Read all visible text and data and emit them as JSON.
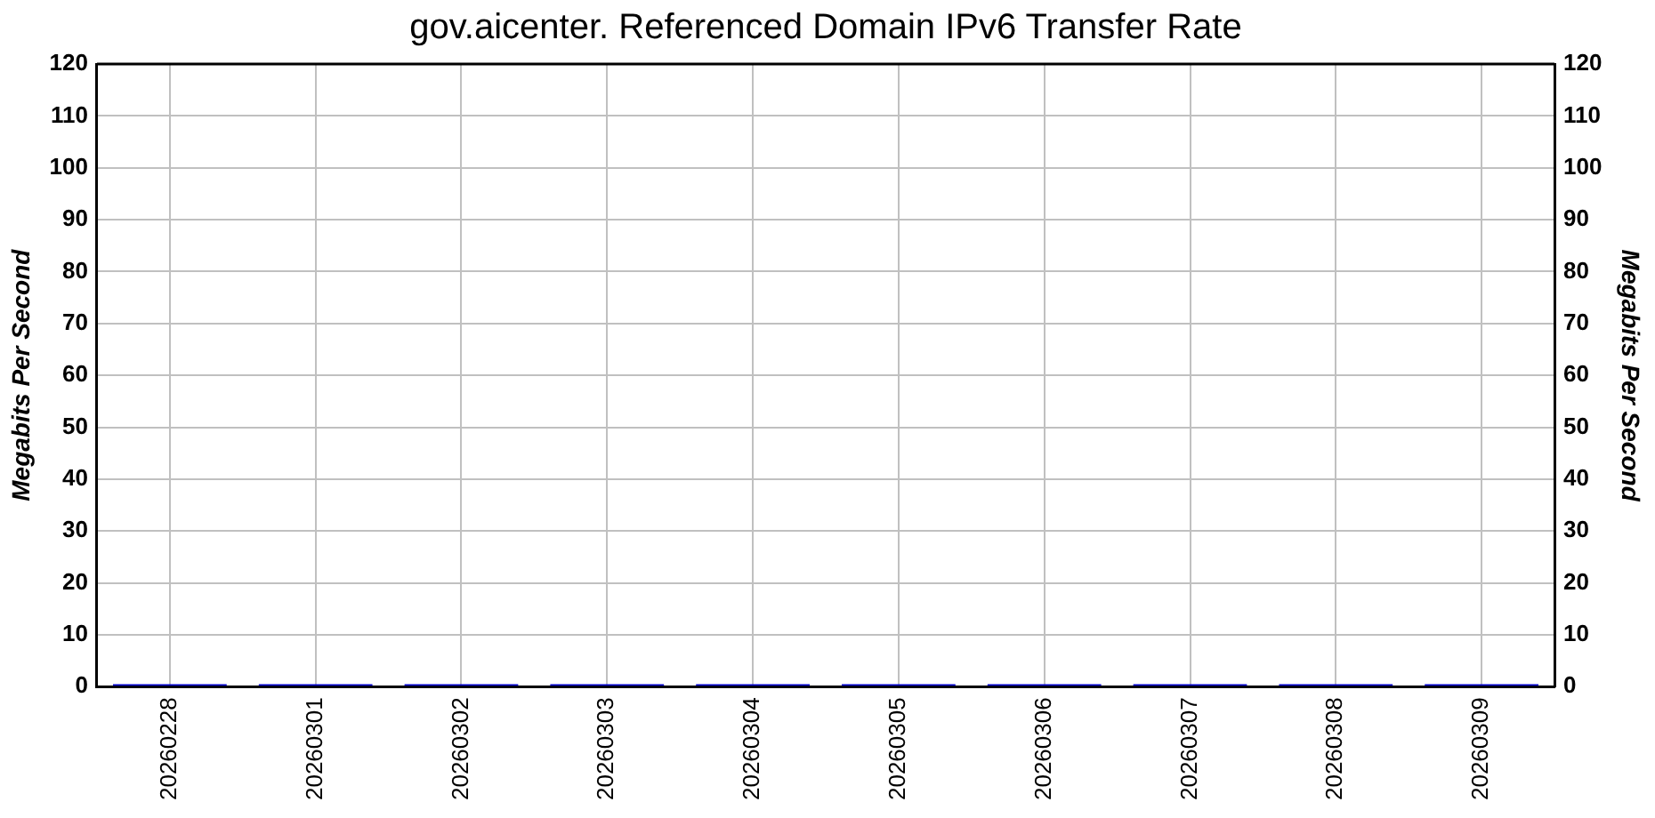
{
  "chart_data": {
    "type": "bar",
    "title": "gov.aicenter. Referenced Domain IPv6 Transfer Rate",
    "ylabel": "Megabits Per Second",
    "y2label": "Megabits Per Second",
    "categories": [
      "20260228",
      "20260301",
      "20260302",
      "20260303",
      "20260304",
      "20260305",
      "20260306",
      "20260307",
      "20260308",
      "20260309"
    ],
    "values": [
      0.5,
      0.5,
      0.5,
      0.5,
      0.5,
      0.5,
      0.5,
      0.5,
      0.5,
      0.5
    ],
    "color": "#0000cc",
    "ylim": [
      0,
      120
    ],
    "yticks": [
      0,
      10,
      20,
      30,
      40,
      50,
      60,
      70,
      80,
      90,
      100,
      110,
      120
    ],
    "y2lim": [
      0,
      120
    ],
    "y2ticks": [
      0,
      10,
      20,
      30,
      40,
      50,
      60,
      70,
      80,
      90,
      100,
      110,
      120
    ],
    "grid": true
  }
}
